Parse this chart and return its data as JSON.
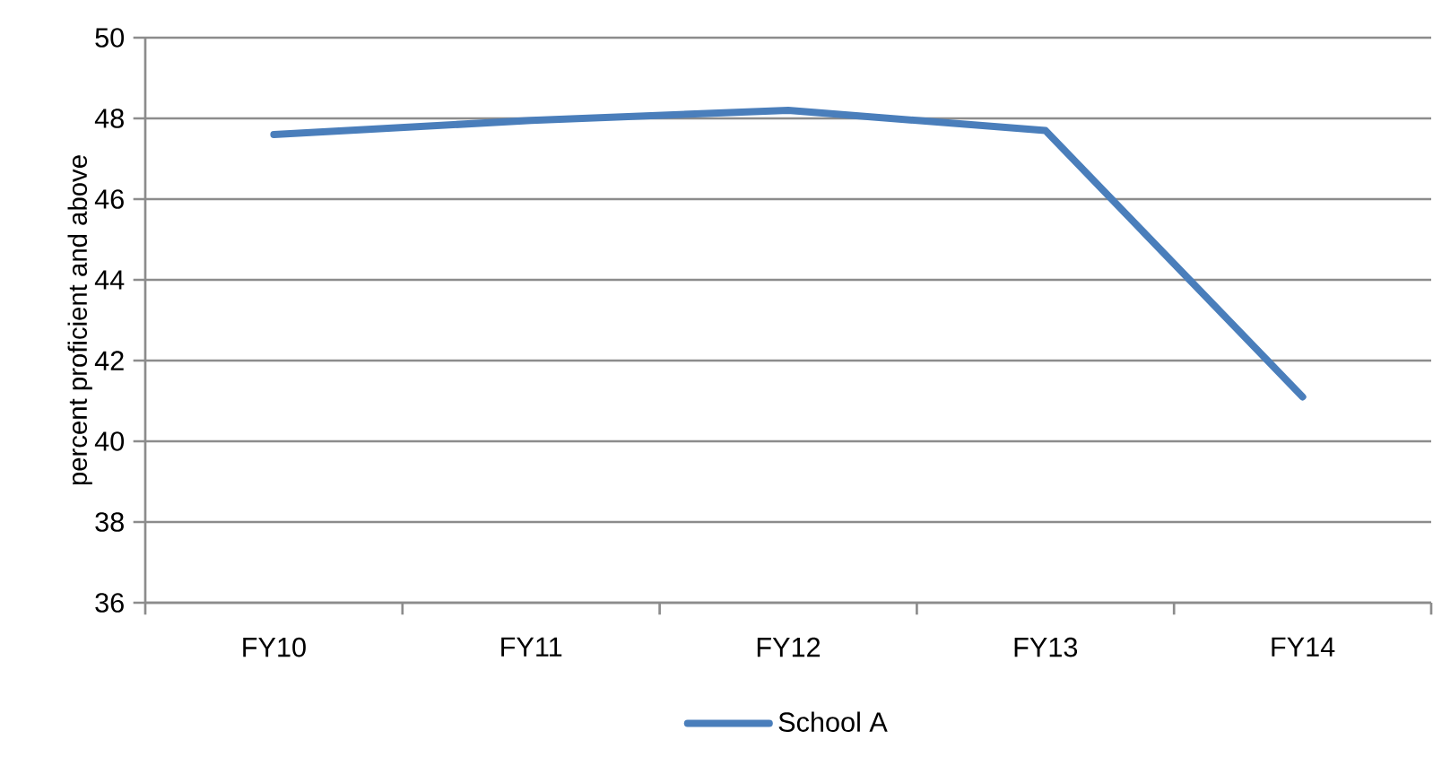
{
  "chart_data": {
    "type": "line",
    "ylabel": "percent proficient and above",
    "categories": [
      "FY10",
      "FY11",
      "FY12",
      "FY13",
      "FY14"
    ],
    "series": [
      {
        "name": "School A",
        "color": "#4a7ebb",
        "values": [
          47.6,
          47.95,
          48.2,
          47.7,
          41.1
        ]
      }
    ],
    "ylim": [
      36,
      50
    ],
    "yticks": [
      36,
      38,
      40,
      42,
      44,
      46,
      48,
      50
    ],
    "grid": "y",
    "legend": "bottom",
    "marker": "none",
    "line_style": "solid"
  }
}
